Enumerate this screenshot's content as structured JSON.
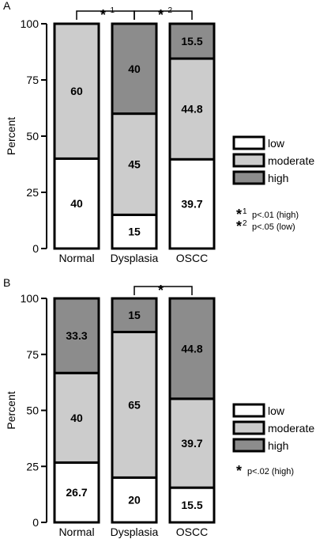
{
  "colors": {
    "low": "#ffffff",
    "moderate": "#cccccc",
    "high": "#8c8c8c",
    "stroke": "#000000"
  },
  "legend": [
    {
      "key": "low",
      "label": "low"
    },
    {
      "key": "moderate",
      "label": "moderate"
    },
    {
      "key": "high",
      "label": "high"
    }
  ],
  "chart_data": [
    {
      "panel": "A",
      "type": "bar",
      "stacked": true,
      "ylabel": "Percent",
      "ylim": [
        0,
        100
      ],
      "yticks": [
        "0",
        "25",
        "50",
        "75",
        "100"
      ],
      "categories": [
        "Normal",
        "Dysplasia",
        "OSCC"
      ],
      "series": [
        {
          "name": "low",
          "values": [
            40,
            15,
            39.7
          ],
          "labels": [
            "40",
            "15",
            "39.7"
          ]
        },
        {
          "name": "moderate",
          "values": [
            60,
            45,
            44.8
          ],
          "labels": [
            "60",
            "45",
            "44.8"
          ]
        },
        {
          "name": "high",
          "values": [
            0,
            40,
            15.5
          ],
          "labels": [
            "",
            "40",
            "15.5"
          ]
        }
      ],
      "brackets": [
        {
          "from": 0,
          "to": 1,
          "star": "*",
          "sup": "1"
        },
        {
          "from": 1,
          "to": 2,
          "star": "*",
          "sup": "2"
        }
      ],
      "notes": [
        {
          "star": "*",
          "sup": "1",
          "text": "p<.01 (high)"
        },
        {
          "star": "*",
          "sup": "2",
          "text": "p<.05 (low)"
        }
      ]
    },
    {
      "panel": "B",
      "type": "bar",
      "stacked": true,
      "ylabel": "Percent",
      "ylim": [
        0,
        100
      ],
      "yticks": [
        "0",
        "25",
        "50",
        "75",
        "100"
      ],
      "categories": [
        "Normal",
        "Dysplasia",
        "OSCC"
      ],
      "series": [
        {
          "name": "low",
          "values": [
            26.7,
            20,
            15.5
          ],
          "labels": [
            "26.7",
            "20",
            "15.5"
          ]
        },
        {
          "name": "moderate",
          "values": [
            40,
            65,
            39.7
          ],
          "labels": [
            "40",
            "65",
            "39.7"
          ]
        },
        {
          "name": "high",
          "values": [
            33.3,
            15,
            44.8
          ],
          "labels": [
            "33.3",
            "15",
            "44.8"
          ]
        }
      ],
      "brackets": [
        {
          "from": 1,
          "to": 2,
          "star": "*",
          "sup": ""
        }
      ],
      "notes": [
        {
          "star": "*",
          "sup": "",
          "text": "p<.02 (high)"
        }
      ]
    }
  ]
}
